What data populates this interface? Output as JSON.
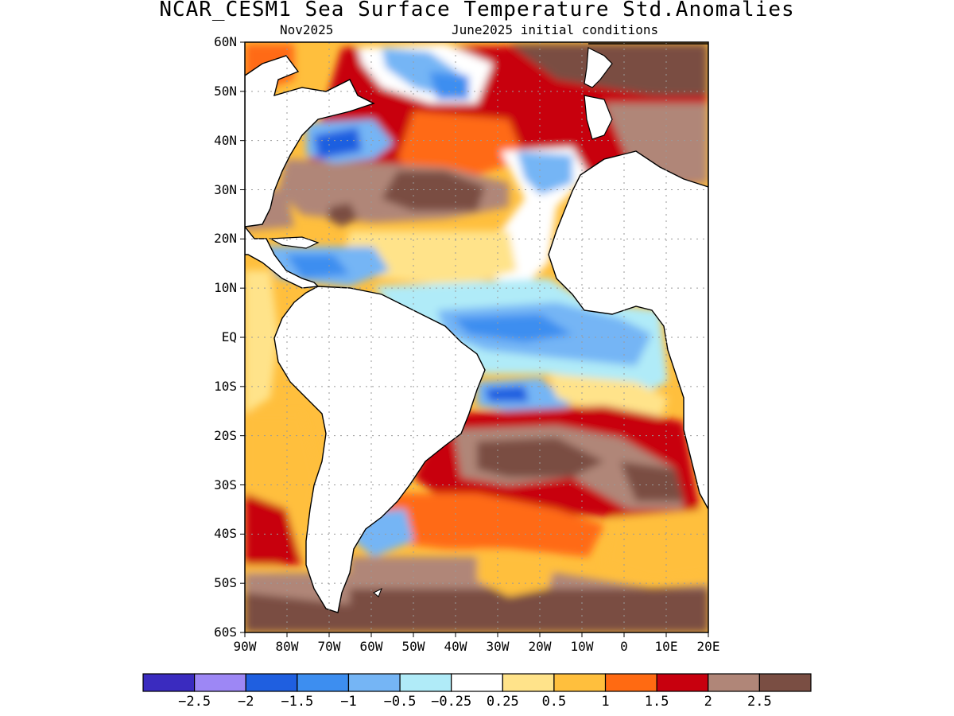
{
  "title": "NCAR_CESM1 Sea Surface Temperature Std.Anomalies",
  "subtitle_left": "Nov2025",
  "subtitle_right": "June2025 initial conditions",
  "y_ticks": [
    "60N",
    "50N",
    "40N",
    "30N",
    "20N",
    "10N",
    "EQ",
    "10S",
    "20S",
    "30S",
    "40S",
    "50S",
    "60S"
  ],
  "x_ticks": [
    "90W",
    "80W",
    "70W",
    "60W",
    "50W",
    "40W",
    "30W",
    "20W",
    "10W",
    "0",
    "10E",
    "20E"
  ],
  "colorbar": {
    "colors": [
      "#3a2bbf",
      "#9d87f5",
      "#1f5fe0",
      "#3d8ef0",
      "#75b5f5",
      "#b0ebf8",
      "#ffffff",
      "#ffe38a",
      "#ffbf3d",
      "#ff6a12",
      "#c8000e",
      "#b08678",
      "#7a4e43"
    ],
    "labels": [
      "-2.5",
      "-2",
      "-1.5",
      "-1",
      "-0.5",
      "-0.25",
      "0.25",
      "0.5",
      "1",
      "1.5",
      "2",
      "2.5"
    ]
  },
  "map": {
    "lon_range": [
      -90,
      20
    ],
    "lat_range": [
      -60,
      60
    ],
    "colors": {
      "land": "#ffffff",
      "coast": "#000000",
      "grid": "#9a9a9a"
    }
  }
}
